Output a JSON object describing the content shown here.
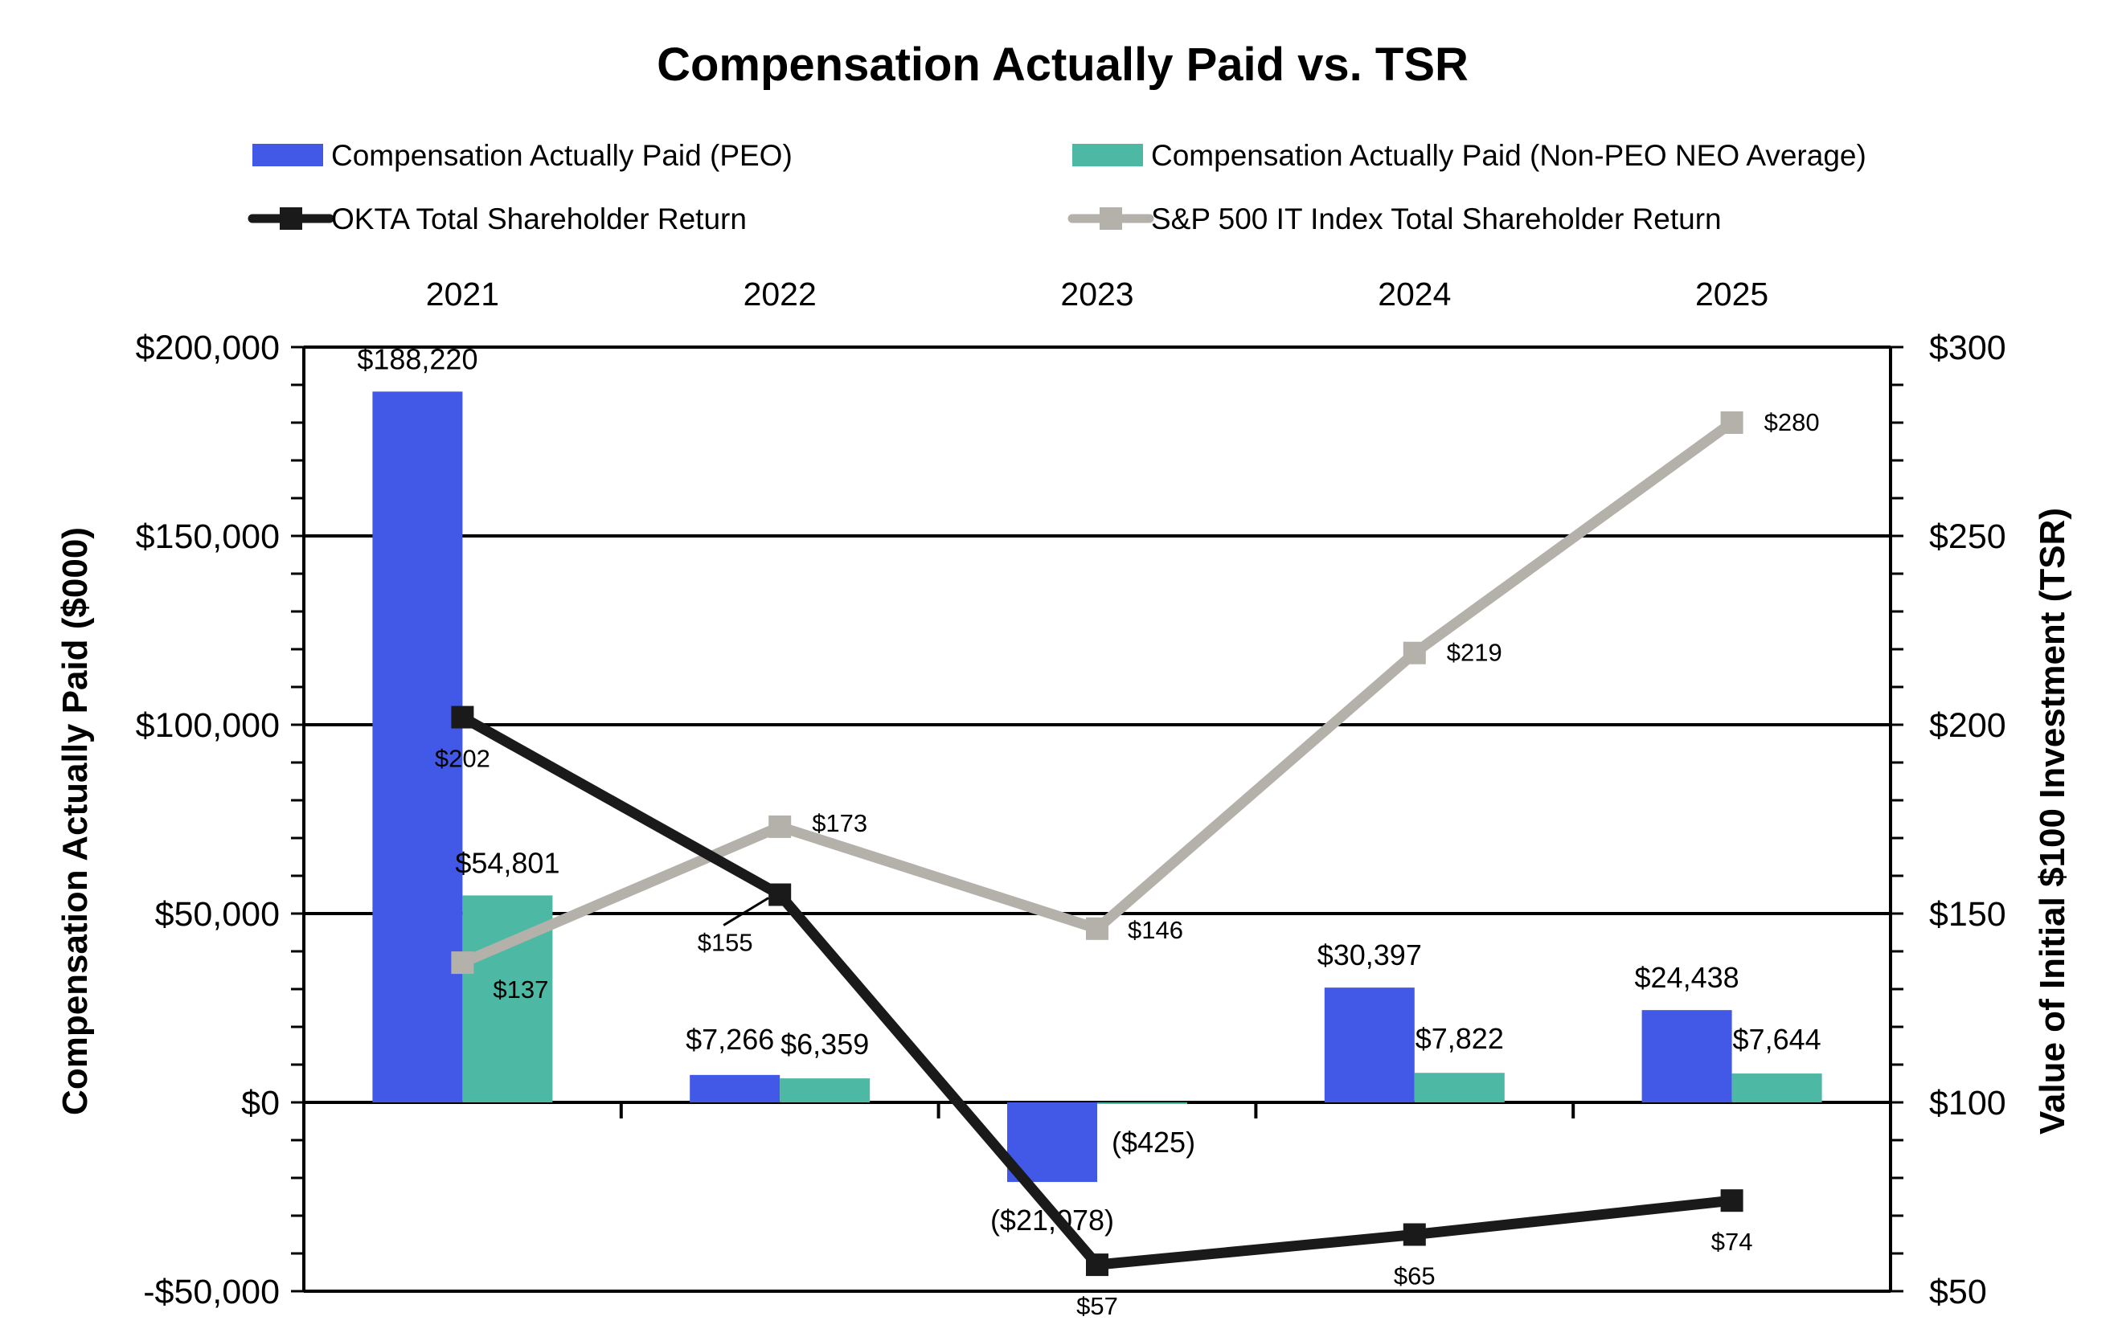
{
  "chart_data": {
    "type": "bar+line",
    "title": "Compensation Actually Paid vs. TSR",
    "categories": [
      "2021",
      "2022",
      "2023",
      "2024",
      "2025"
    ],
    "left_axis": {
      "label": "Compensation Actually Paid ($000)",
      "range": [
        -50000,
        200000
      ],
      "ticks": [
        {
          "value": 200000,
          "label": "$200,000"
        },
        {
          "value": 150000,
          "label": "$150,000"
        },
        {
          "value": 100000,
          "label": "$100,000"
        },
        {
          "value": 50000,
          "label": "$50,000"
        },
        {
          "value": 0,
          "label": "$0"
        },
        {
          "value": -50000,
          "label": "-$50,000"
        }
      ]
    },
    "right_axis": {
      "label": "Value of Initial $100 Investment (TSR)",
      "range": [
        50,
        300
      ],
      "ticks": [
        {
          "value": 300,
          "label": "$300"
        },
        {
          "value": 250,
          "label": "$250"
        },
        {
          "value": 200,
          "label": "$200"
        },
        {
          "value": 150,
          "label": "$150"
        },
        {
          "value": 100,
          "label": "$100"
        },
        {
          "value": 50,
          "label": "$50"
        }
      ]
    },
    "bar_series": [
      {
        "name": "Compensation Actually Paid (PEO)",
        "color": "#4159E6",
        "values": [
          188220,
          7266,
          -21078,
          30397,
          24438
        ],
        "labels": [
          "$188,220",
          "$7,266",
          "($21,078)",
          "$30,397",
          "$24,438"
        ]
      },
      {
        "name": "Compensation Actually Paid (Non-PEO NEO Average)",
        "color": "#4DB8A3",
        "values": [
          54801,
          6359,
          -425,
          7822,
          7644
        ],
        "labels": [
          "$54,801",
          "$6,359",
          "($425)",
          "$7,822",
          "$7,644"
        ]
      }
    ],
    "line_series": [
      {
        "name": "OKTA Total Shareholder Return",
        "color": "#1a1a1a",
        "values": [
          202,
          155,
          57,
          65,
          74
        ],
        "labels": [
          "$202",
          "$155",
          "$57",
          "$65",
          "$74"
        ]
      },
      {
        "name": "S&P 500 IT Index Total Shareholder Return",
        "color": "#b3b1aa",
        "values": [
          137,
          173,
          146,
          219,
          280
        ],
        "labels": [
          "$137",
          "$173",
          "$146",
          "$219",
          "$280"
        ]
      }
    ],
    "gridlines": true,
    "legend_position": "top"
  }
}
